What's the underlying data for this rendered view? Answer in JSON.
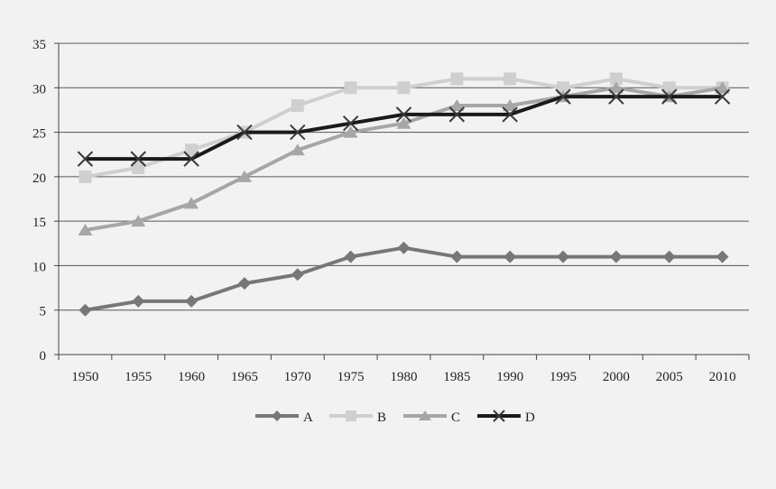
{
  "chart_data": {
    "type": "line",
    "title": "",
    "xlabel": "",
    "ylabel": "",
    "ylim": [
      0,
      35
    ],
    "y_ticks": [
      0,
      5,
      10,
      15,
      20,
      25,
      30,
      35
    ],
    "grid": "horizontal",
    "legend_position": "bottom",
    "categories": [
      "1950",
      "1955",
      "1960",
      "1965",
      "1970",
      "1975",
      "1980",
      "1985",
      "1990",
      "1995",
      "2000",
      "2005",
      "2010"
    ],
    "series": [
      {
        "name": "A",
        "color": "#777777",
        "marker": "diamond",
        "values": [
          5,
          6,
          6,
          8,
          9,
          11,
          12,
          11,
          11,
          11,
          11,
          11,
          11
        ]
      },
      {
        "name": "B",
        "color": "#cfcfcf",
        "marker": "square",
        "values": [
          20,
          21,
          23,
          25,
          28,
          30,
          30,
          31,
          31,
          30,
          31,
          30,
          30
        ]
      },
      {
        "name": "C",
        "color": "#a6a6a6",
        "marker": "triangle",
        "values": [
          14,
          15,
          17,
          20,
          23,
          25,
          26,
          28,
          28,
          29,
          30,
          29,
          30
        ]
      },
      {
        "name": "D",
        "color": "#1a1a1a",
        "marker": "x",
        "values": [
          22,
          22,
          22,
          25,
          25,
          26,
          27,
          27,
          27,
          29,
          29,
          29,
          29
        ]
      }
    ]
  }
}
